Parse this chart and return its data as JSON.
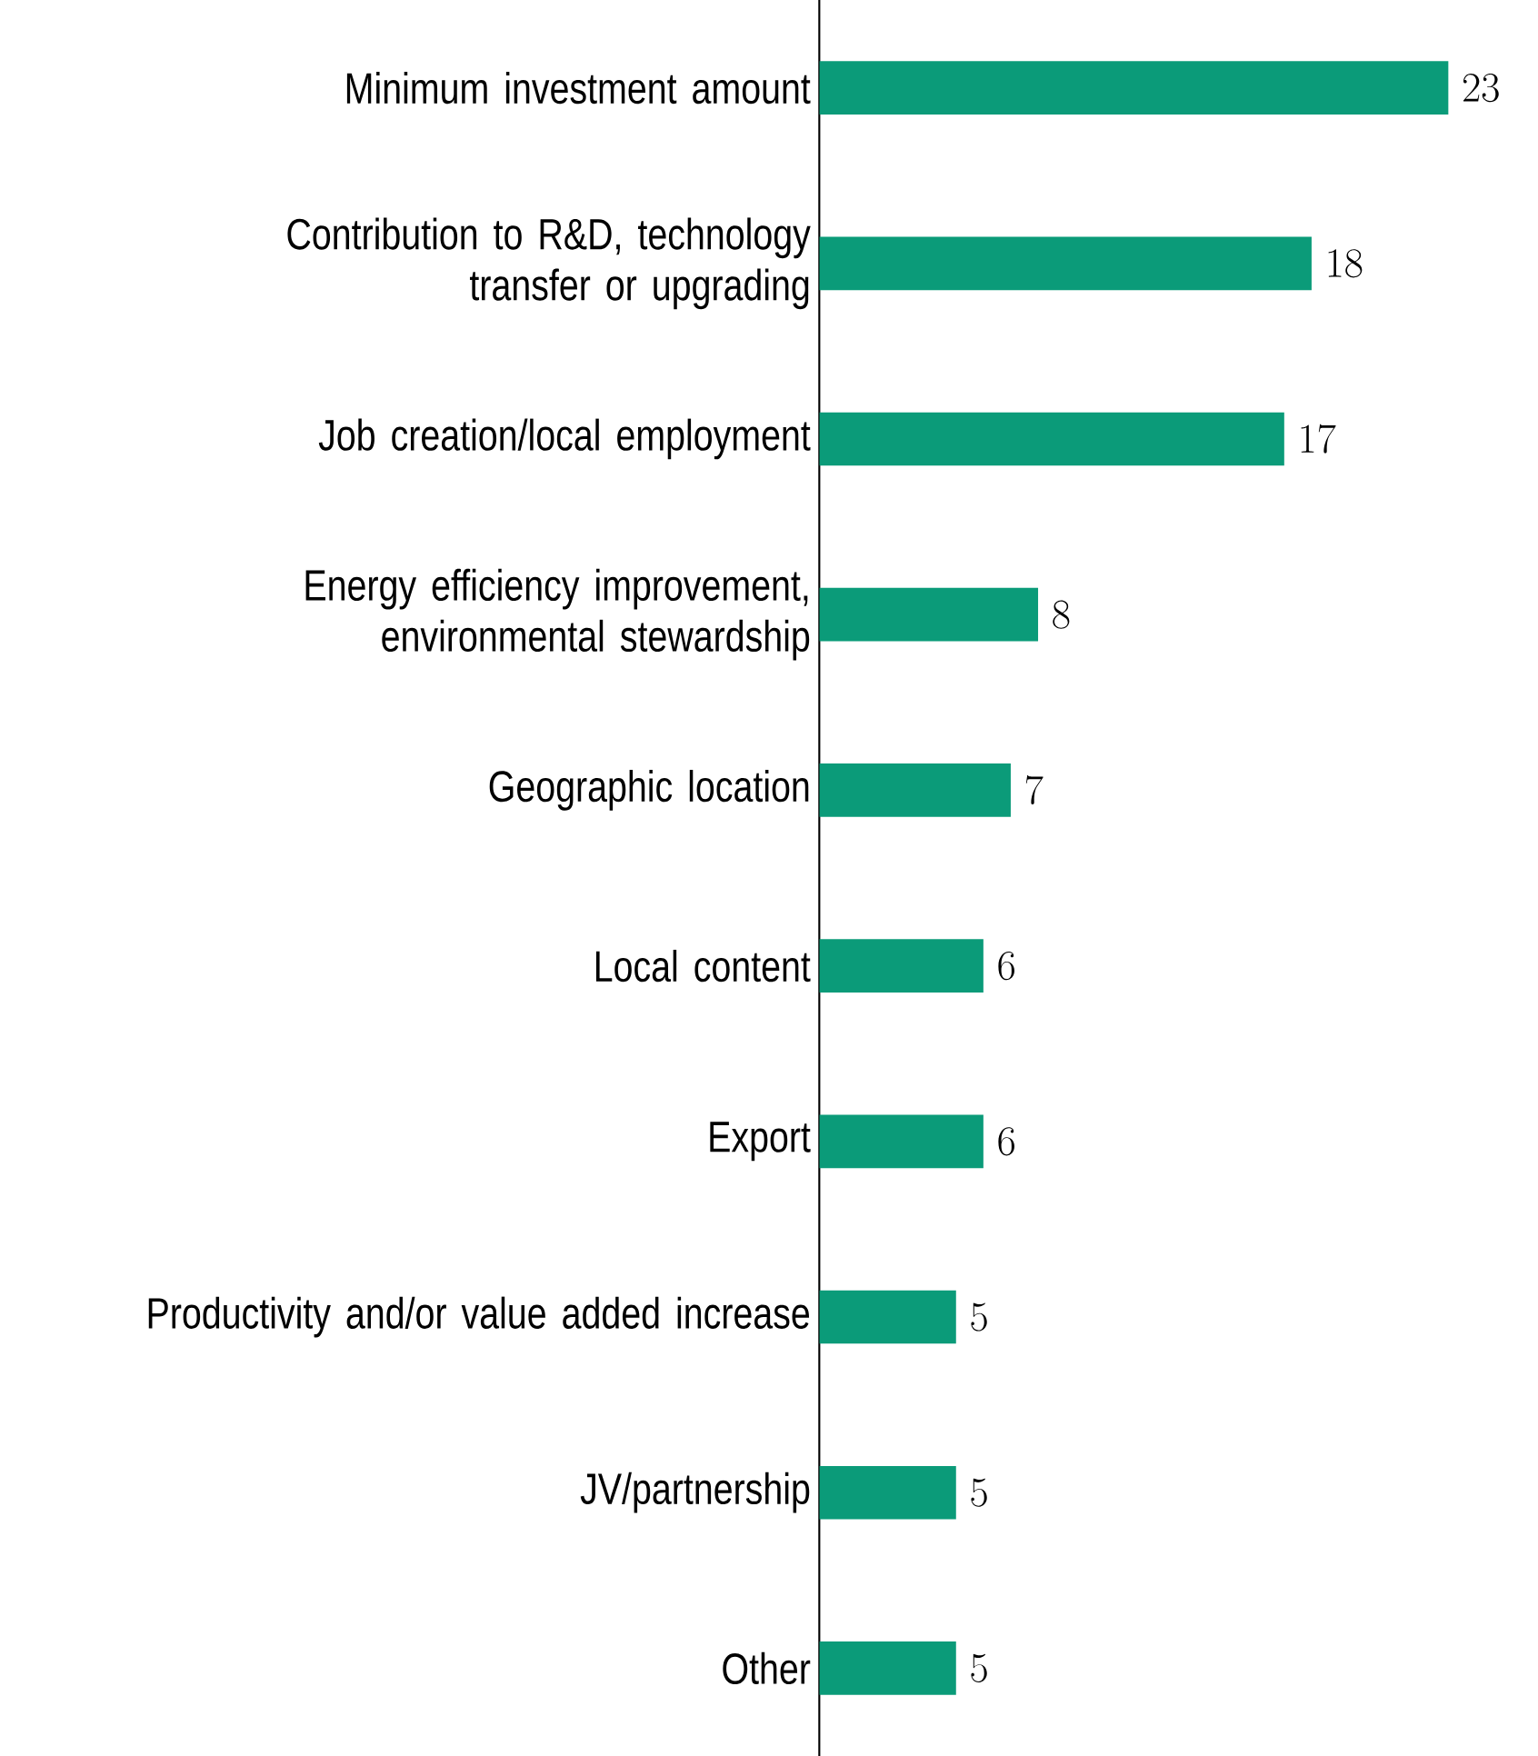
{
  "chart_data": {
    "type": "bar",
    "orientation": "horizontal",
    "data_labels": true,
    "color": "#0b9b79",
    "categories": [
      "Minimum investment amount",
      "Contribution to R&D, technology transfer or upgrading",
      "Job creation/local employment",
      "Energy efficiency improvement, environmental stewardship",
      "Geographic location",
      "Local content",
      "Export",
      "Productivity and/or value added increase",
      "JV/partnership",
      "Other"
    ],
    "values": [
      23,
      18,
      17,
      8,
      7,
      6,
      6,
      5,
      5,
      5
    ]
  }
}
